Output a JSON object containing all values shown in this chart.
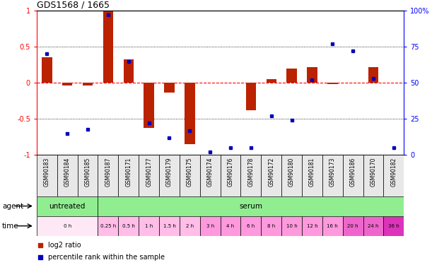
{
  "title": "GDS1568 / 1665",
  "samples": [
    "GSM90183",
    "GSM90184",
    "GSM90185",
    "GSM90187",
    "GSM90171",
    "GSM90177",
    "GSM90179",
    "GSM90175",
    "GSM90174",
    "GSM90176",
    "GSM90178",
    "GSM90172",
    "GSM90180",
    "GSM90181",
    "GSM90173",
    "GSM90186",
    "GSM90170",
    "GSM90182"
  ],
  "log2_ratio": [
    0.35,
    -0.04,
    -0.04,
    1.0,
    0.32,
    -0.62,
    -0.14,
    -0.85,
    0.0,
    0.0,
    -0.38,
    0.05,
    0.2,
    0.22,
    -0.02,
    0.0,
    0.22,
    0.0
  ],
  "percentile": [
    70,
    15,
    18,
    97,
    65,
    22,
    12,
    17,
    2,
    5,
    5,
    27,
    24,
    52,
    77,
    72,
    53,
    5
  ],
  "bar_color": "#bb2200",
  "dot_color": "#0000bb",
  "ylim_left": [
    -1.0,
    1.0
  ],
  "ylim_right": [
    0,
    100
  ],
  "yticks_left": [
    -1.0,
    -0.5,
    0.0,
    0.5,
    1.0
  ],
  "ytick_labels_left": [
    "-1",
    "-0.5",
    "0",
    "0.5",
    "1"
  ],
  "yticks_right": [
    0,
    25,
    50,
    75,
    100
  ],
  "ytick_labels_right": [
    "0",
    "25",
    "50",
    "75",
    "100%"
  ],
  "hline_dotted": [
    0.5,
    -0.5
  ],
  "agent_groups": [
    {
      "label": "untreated",
      "start": 0,
      "end": 3,
      "color": "#90ee90"
    },
    {
      "label": "serum",
      "start": 3,
      "end": 18,
      "color": "#90ee90"
    }
  ],
  "time_groups": [
    {
      "label": "0 h",
      "start": 0,
      "end": 3,
      "color": "#ffe8f5"
    },
    {
      "label": "0.25 h",
      "start": 3,
      "end": 4,
      "color": "#ffbde8"
    },
    {
      "label": "0.5 h",
      "start": 4,
      "end": 5,
      "color": "#ffbde8"
    },
    {
      "label": "1 h",
      "start": 5,
      "end": 6,
      "color": "#ffbde8"
    },
    {
      "label": "1.5 h",
      "start": 6,
      "end": 7,
      "color": "#ffbde8"
    },
    {
      "label": "2 h",
      "start": 7,
      "end": 8,
      "color": "#ffbde8"
    },
    {
      "label": "3 h",
      "start": 8,
      "end": 9,
      "color": "#ff99dd"
    },
    {
      "label": "4 h",
      "start": 9,
      "end": 10,
      "color": "#ff99dd"
    },
    {
      "label": "6 h",
      "start": 10,
      "end": 11,
      "color": "#ff99dd"
    },
    {
      "label": "8 h",
      "start": 11,
      "end": 12,
      "color": "#ff99dd"
    },
    {
      "label": "10 h",
      "start": 12,
      "end": 13,
      "color": "#ff99dd"
    },
    {
      "label": "12 h",
      "start": 13,
      "end": 14,
      "color": "#ff99dd"
    },
    {
      "label": "16 h",
      "start": 14,
      "end": 15,
      "color": "#ff99dd"
    },
    {
      "label": "20 h",
      "start": 15,
      "end": 16,
      "color": "#ee66cc"
    },
    {
      "label": "24 h",
      "start": 16,
      "end": 17,
      "color": "#ee66cc"
    },
    {
      "label": "36 h",
      "start": 17,
      "end": 18,
      "color": "#dd33bb"
    }
  ],
  "legend_items": [
    {
      "label": "log2 ratio",
      "color": "#bb2200"
    },
    {
      "label": "percentile rank within the sample",
      "color": "#0000bb"
    }
  ]
}
